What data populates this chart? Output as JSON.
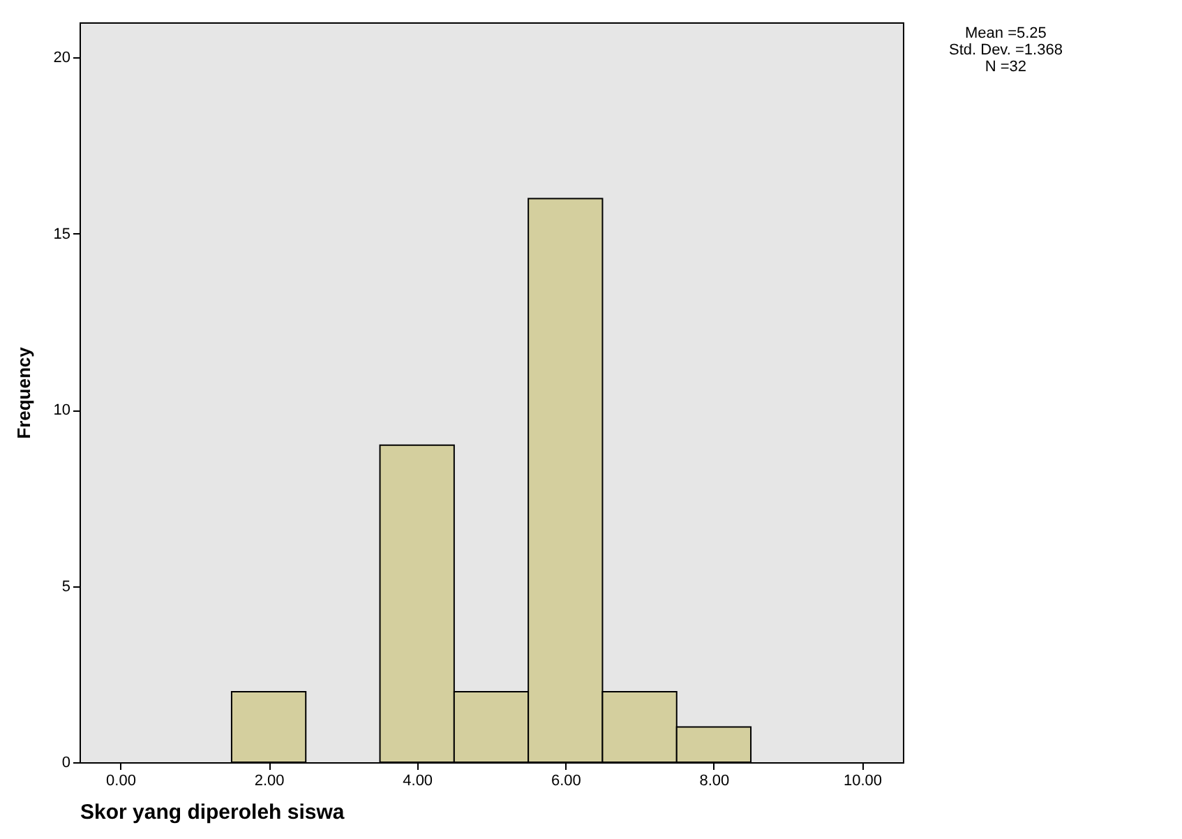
{
  "chart_data": {
    "type": "histogram",
    "xlabel": "Skor yang diperoleh siswa",
    "ylabel": "Frequency",
    "bins": [
      1.5,
      2.5,
      3.5,
      4.5,
      5.5,
      6.5,
      7.5,
      8.5
    ],
    "values": [
      2,
      0,
      9,
      2,
      16,
      2,
      1
    ],
    "color": "#d4cf9e",
    "xlim": [
      -0.55,
      10.55
    ],
    "xticks": [
      {
        "value": 0,
        "label": "0.00"
      },
      {
        "value": 2,
        "label": "2.00"
      },
      {
        "value": 4,
        "label": "4.00"
      },
      {
        "value": 6,
        "label": "6.00"
      },
      {
        "value": 8,
        "label": "8.00"
      },
      {
        "value": 10,
        "label": "10.00"
      }
    ],
    "ylim": [
      0,
      21
    ],
    "yticks": [
      0,
      5,
      10,
      15,
      20
    ],
    "grid": false,
    "annotations": [
      "Mean =5.25",
      "Std. Dev. =1.368",
      "N =32"
    ]
  }
}
